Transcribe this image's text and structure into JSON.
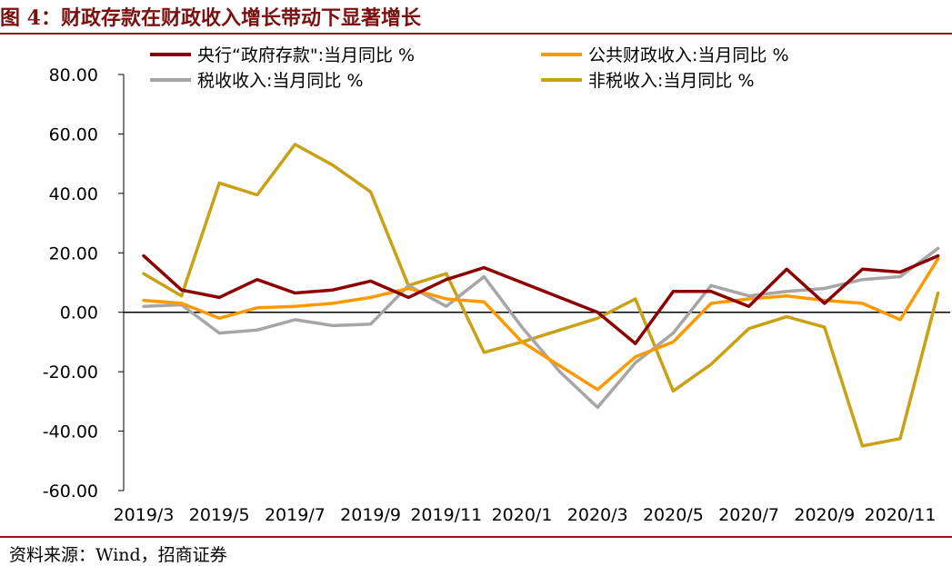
{
  "title": "图 4：财政存款在财政收入增长带动下显著增长",
  "source": "资料来源：Wind，招商证券",
  "chart_data": {
    "type": "line",
    "title": "图 4：财政存款在财政收入增长带动下显著增长",
    "xlabel": "",
    "ylabel": "",
    "ylim": [
      -60,
      80
    ],
    "yticks": [
      "80.00",
      "60.00",
      "40.00",
      "20.00",
      "0.00",
      "-20.00",
      "-40.00",
      "-60.00"
    ],
    "ytick_values": [
      80,
      60,
      40,
      20,
      0,
      -20,
      -40,
      -60
    ],
    "x": [
      "2019/3",
      "2019/4",
      "2019/5",
      "2019/6",
      "2019/7",
      "2019/8",
      "2019/9",
      "2019/10",
      "2019/11",
      "2019/12",
      "2020/1",
      "2020/2",
      "2020/3",
      "2020/4",
      "2020/5",
      "2020/6",
      "2020/7",
      "2020/8",
      "2020/9",
      "2020/10",
      "2020/11",
      "2020/12"
    ],
    "xtick_labels": [
      "2019/3",
      "2019/5",
      "2019/7",
      "2019/9",
      "2019/11",
      "2020/1",
      "2020/3",
      "2020/5",
      "2020/7",
      "2020/9",
      "2020/11"
    ],
    "xtick_indices": [
      0,
      2,
      4,
      6,
      8,
      10,
      12,
      14,
      16,
      18,
      20
    ],
    "grid": false,
    "legend_placement": "top",
    "series": [
      {
        "name": "央行“政府存款\":当月同比 %",
        "color": "#8b0000",
        "values": [
          19,
          7.5,
          5,
          11,
          6.5,
          7.5,
          10.5,
          5,
          11,
          15,
          10,
          5,
          0,
          -10.5,
          7,
          7,
          2,
          14.5,
          3,
          14.5,
          13.5,
          19
        ]
      },
      {
        "name": "公共财政收入:当月同比 %",
        "color": "#ff9900",
        "values": [
          4,
          3,
          -2,
          1.5,
          2,
          3,
          5,
          8,
          4.5,
          3.5,
          -10,
          -18,
          -26,
          -15,
          -10,
          3,
          4.5,
          5.5,
          4,
          3,
          -2.5,
          18
        ]
      },
      {
        "name": "税收收入:当月同比 %",
        "color": "#a6a6a6",
        "values": [
          2,
          2.5,
          -7,
          -6,
          -2.5,
          -4.5,
          -4,
          9,
          2,
          12,
          -5,
          -20,
          -32,
          -17,
          -7,
          9,
          5.5,
          7,
          8,
          11,
          12,
          21.5
        ]
      },
      {
        "name": "非税收入:当月同比 %",
        "color": "#c8a214",
        "values": [
          13,
          5.5,
          43.5,
          39.5,
          56.5,
          49.5,
          40.5,
          9,
          13,
          -13.5,
          -10,
          -6,
          -2,
          4.5,
          -26.5,
          -17.5,
          -5.5,
          -1.5,
          -5,
          -45,
          -42.5,
          6.5
        ]
      }
    ]
  }
}
